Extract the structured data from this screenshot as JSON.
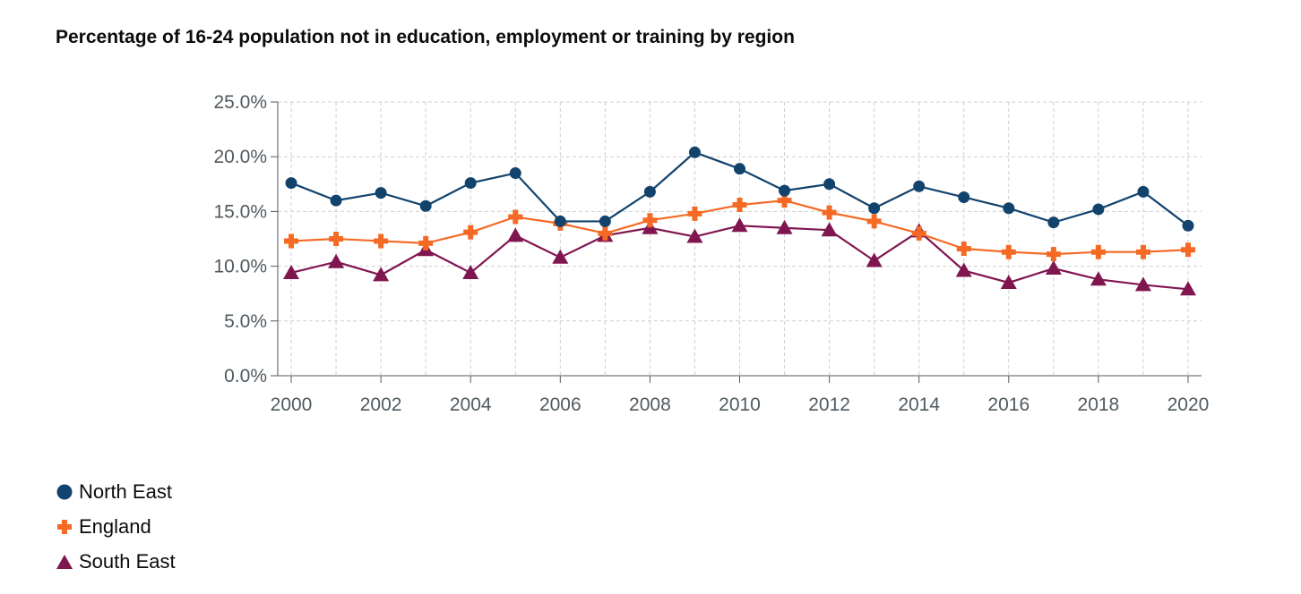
{
  "chart_data": {
    "type": "line",
    "title": "Percentage of 16-24 population not in education, employment or training by region",
    "x": [
      2000,
      2001,
      2002,
      2003,
      2004,
      2005,
      2006,
      2007,
      2008,
      2009,
      2010,
      2011,
      2012,
      2013,
      2014,
      2015,
      2016,
      2017,
      2018,
      2019,
      2020
    ],
    "x_ticks": [
      "2000",
      "2002",
      "2004",
      "2006",
      "2008",
      "2010",
      "2012",
      "2014",
      "2016",
      "2018",
      "2020"
    ],
    "y_ticks": [
      "0.0%",
      "5.0%",
      "10.0%",
      "15.0%",
      "20.0%",
      "25.0%"
    ],
    "ylim": [
      0,
      25
    ],
    "xlim": [
      1999.7,
      2020.3
    ],
    "grid": true,
    "legend_position": "bottom-left",
    "series": [
      {
        "name": "North East",
        "color": "#12436d",
        "marker": "circle",
        "values": [
          17.6,
          16.0,
          16.7,
          15.5,
          17.6,
          18.5,
          14.1,
          14.1,
          16.8,
          20.4,
          18.9,
          16.9,
          17.5,
          15.3,
          17.3,
          16.3,
          15.3,
          14.0,
          15.2,
          16.8,
          13.7
        ]
      },
      {
        "name": "England",
        "color": "#f46a25",
        "marker": "cross",
        "values": [
          12.3,
          12.5,
          12.3,
          12.1,
          13.1,
          14.5,
          13.9,
          13.0,
          14.2,
          14.8,
          15.6,
          16.0,
          14.9,
          14.1,
          13.0,
          11.6,
          11.3,
          11.1,
          11.3,
          11.3,
          11.5
        ]
      },
      {
        "name": "South East",
        "color": "#801650",
        "marker": "triangle",
        "values": [
          9.4,
          10.4,
          9.2,
          11.5,
          9.4,
          12.8,
          10.8,
          12.8,
          13.5,
          12.7,
          13.7,
          13.5,
          13.3,
          10.5,
          13.2,
          9.6,
          8.5,
          9.8,
          8.8,
          8.3,
          7.9
        ]
      }
    ]
  }
}
